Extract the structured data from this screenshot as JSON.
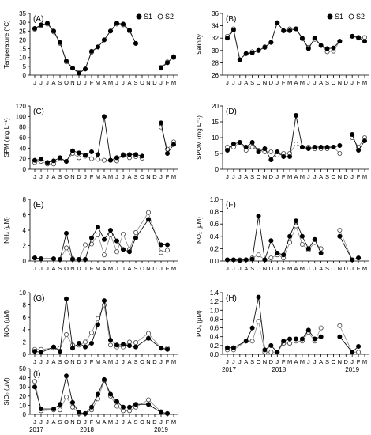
{
  "months": [
    "J",
    "J",
    "J",
    "A",
    "S",
    "O",
    "N",
    "D",
    "J",
    "F",
    "M",
    "A",
    "M",
    "J",
    "J",
    "A",
    "S",
    "O",
    "N",
    "D",
    "J",
    "F",
    "M"
  ],
  "years": [
    "2017",
    "2018",
    "2019"
  ],
  "legend": {
    "s1": "S1",
    "s2": "S2"
  },
  "chart_data": [
    {
      "type": "line",
      "panel": "(A)",
      "ylabel": "Temperature (°C)",
      "ylim": [
        0,
        35
      ],
      "yticks": [
        0,
        5,
        10,
        15,
        20,
        25,
        30,
        35
      ],
      "legend": true,
      "series": [
        {
          "name": "S1",
          "x": [
            0,
            1,
            2,
            3,
            4,
            5,
            6,
            7,
            8,
            9,
            10,
            11,
            12,
            13,
            14,
            15,
            16,
            17,
            18,
            19,
            20,
            21,
            22
          ],
          "values": [
            26.5,
            28.5,
            29.5,
            25.0,
            18.5,
            8.0,
            4.0,
            1.0,
            3.5,
            13.5,
            16.0,
            20.0,
            25.0,
            29.5,
            29.0,
            25.5,
            18.0,
            null,
            null,
            null,
            4.0,
            7.0,
            10.5
          ]
        },
        {
          "name": "S2",
          "x": [
            0,
            1,
            2,
            3,
            4,
            5,
            6,
            7,
            8,
            9,
            10,
            11,
            12,
            13,
            14,
            15,
            16,
            17,
            18,
            19,
            20,
            21,
            22
          ],
          "values": [
            26.0,
            28.0,
            29.0,
            24.5,
            18.0,
            7.5,
            4.0,
            1.5,
            3.5,
            13.0,
            16.0,
            20.0,
            25.0,
            29.0,
            28.5,
            25.0,
            18.0,
            null,
            null,
            null,
            4.5,
            7.5,
            10.0
          ]
        }
      ]
    },
    {
      "type": "line",
      "panel": "(B)",
      "ylabel": "Salinity",
      "ylim": [
        26,
        36
      ],
      "yticks": [
        26,
        28,
        30,
        32,
        34,
        36
      ],
      "legend": true,
      "series": [
        {
          "name": "S1",
          "x": [
            0,
            1,
            2,
            3,
            4,
            5,
            6,
            7,
            8,
            9,
            10,
            11,
            12,
            13,
            14,
            15,
            16,
            17,
            18,
            19,
            20,
            21,
            22
          ],
          "values": [
            32.0,
            33.3,
            28.5,
            29.5,
            29.6,
            30.0,
            30.5,
            31.3,
            34.5,
            33.2,
            33.2,
            33.5,
            32.0,
            30.3,
            32.0,
            30.8,
            30.3,
            30.4,
            31.5,
            null,
            32.3,
            32.1,
            31.5
          ]
        },
        {
          "name": "S2",
          "x": [
            0,
            1,
            2,
            3,
            4,
            5,
            6,
            7,
            8,
            9,
            10,
            11,
            12,
            13,
            14,
            15,
            16,
            17,
            18,
            19,
            20,
            21,
            22
          ],
          "values": [
            32.3,
            33.5,
            28.5,
            29.5,
            29.8,
            30.0,
            30.6,
            31.3,
            34.5,
            33.2,
            33.5,
            33.5,
            31.9,
            30.5,
            31.8,
            30.8,
            29.8,
            29.9,
            31.5,
            null,
            32.3,
            32.0,
            32.1
          ]
        }
      ]
    },
    {
      "type": "line",
      "panel": "(C)",
      "ylabel": "SPM (mg L⁻¹)",
      "ylim": [
        0,
        120
      ],
      "yticks": [
        0,
        20,
        40,
        60,
        80,
        100,
        120
      ],
      "legend": false,
      "series": [
        {
          "name": "S1",
          "x": [
            0,
            1,
            2,
            3,
            4,
            5,
            6,
            7,
            8,
            9,
            10,
            11,
            12,
            13,
            14,
            15,
            16,
            17,
            18,
            19,
            20,
            21,
            22
          ],
          "values": [
            17,
            19,
            13,
            16,
            22,
            15,
            35,
            31,
            27,
            33,
            28,
            100,
            17,
            22,
            26,
            28,
            28,
            25,
            null,
            null,
            88,
            30,
            47
          ]
        },
        {
          "name": "S2",
          "x": [
            0,
            1,
            2,
            3,
            4,
            5,
            6,
            7,
            8,
            9,
            10,
            11,
            12,
            13,
            14,
            15,
            16,
            17,
            18,
            19,
            20,
            21,
            22
          ],
          "values": [
            13,
            15,
            10,
            10,
            20,
            15,
            30,
            22,
            25,
            20,
            19,
            17,
            17,
            16,
            28,
            22,
            24,
            21,
            null,
            null,
            80,
            38,
            52
          ]
        }
      ]
    },
    {
      "type": "line",
      "panel": "(D)",
      "ylabel": "SPOM (mg L⁻¹)",
      "ylim": [
        0,
        20
      ],
      "yticks": [
        0,
        5,
        10,
        15,
        20
      ],
      "legend": false,
      "series": [
        {
          "name": "S1",
          "x": [
            0,
            1,
            2,
            3,
            4,
            5,
            6,
            7,
            8,
            9,
            10,
            11,
            12,
            13,
            14,
            15,
            16,
            17,
            18,
            19,
            20,
            21,
            22
          ],
          "values": [
            6,
            8,
            8.5,
            7,
            8.5,
            5.5,
            6.5,
            3,
            5.5,
            4,
            4,
            17,
            7,
            6.5,
            7,
            7,
            7,
            7,
            7.5,
            null,
            11,
            6,
            9
          ]
        },
        {
          "name": "S2",
          "x": [
            0,
            1,
            2,
            3,
            4,
            5,
            6,
            7,
            8,
            9,
            10,
            11,
            12,
            13,
            14,
            15,
            16,
            17,
            18,
            19,
            20,
            21,
            22
          ],
          "values": [
            7,
            7,
            8.5,
            6,
            7,
            6,
            5.5,
            5.5,
            4.5,
            5,
            5,
            8,
            7,
            7,
            6.5,
            6.5,
            6.5,
            7,
            5,
            null,
            10,
            7,
            10
          ]
        }
      ]
    },
    {
      "type": "line",
      "panel": "(E)",
      "ylabel": "NH₄ (µM)",
      "ylim": [
        0,
        8
      ],
      "yticks": [
        0,
        2,
        4,
        6,
        8
      ],
      "legend": false,
      "series": [
        {
          "name": "S1",
          "x": [
            0,
            1,
            3,
            4,
            5,
            6,
            7,
            8,
            9,
            10,
            11,
            12,
            13,
            14,
            15,
            16,
            18,
            20,
            21,
            22
          ],
          "values": [
            0.4,
            0.3,
            0.3,
            0.2,
            3.6,
            0.2,
            0.2,
            0.2,
            3.0,
            4.4,
            2.8,
            4.0,
            2.6,
            1.5,
            1.2,
            3.0,
            5.4,
            2.1,
            2.1,
            null
          ]
        },
        {
          "name": "S2",
          "x": [
            0,
            1,
            3,
            4,
            5,
            6,
            7,
            8,
            9,
            10,
            11,
            12,
            13,
            14,
            15,
            16,
            18,
            20,
            21,
            22
          ],
          "values": [
            0.4,
            0.3,
            0.3,
            0.2,
            1.7,
            0.3,
            0.2,
            2.1,
            2.2,
            3.4,
            0.8,
            3.4,
            1.2,
            3.5,
            1.5,
            3.7,
            6.3,
            1.1,
            1.4,
            null
          ]
        }
      ]
    },
    {
      "type": "line",
      "panel": "(F)",
      "ylabel": "NO₂ (µM)",
      "ylim": [
        0,
        1.0
      ],
      "yticks": [
        0,
        0.2,
        0.4,
        0.6,
        0.8,
        1.0
      ],
      "legend": false,
      "series": [
        {
          "name": "S1",
          "x": [
            0,
            1,
            2,
            3,
            4,
            5,
            6,
            7,
            8,
            9,
            10,
            11,
            12,
            13,
            14,
            15,
            16,
            18,
            20,
            21
          ],
          "values": [
            0.02,
            0.02,
            0.01,
            0.02,
            0.03,
            0.73,
            0.02,
            0.33,
            0.13,
            0.1,
            0.4,
            0.65,
            0.4,
            0.2,
            0.35,
            0.13,
            null,
            0.4,
            0.02,
            0.05
          ]
        },
        {
          "name": "S2",
          "x": [
            0,
            1,
            2,
            3,
            4,
            5,
            6,
            7,
            8,
            9,
            10,
            11,
            12,
            13,
            14,
            15,
            16,
            18,
            20,
            21
          ],
          "values": [
            0.02,
            0.02,
            0.02,
            0.02,
            0.05,
            0.1,
            0.02,
            0.05,
            0.1,
            0.05,
            0.3,
            0.57,
            0.27,
            0.18,
            0.3,
            0.2,
            null,
            0.5,
            0.02,
            0.05
          ]
        }
      ]
    },
    {
      "type": "line",
      "panel": "(G)",
      "ylabel": "NO₃ (µM)",
      "ylim": [
        0,
        10
      ],
      "yticks": [
        0,
        2,
        4,
        6,
        8,
        10
      ],
      "legend": false,
      "series": [
        {
          "name": "S1",
          "x": [
            0,
            1,
            3,
            4,
            5,
            6,
            7,
            8,
            9,
            10,
            11,
            12,
            13,
            14,
            15,
            16,
            18,
            20,
            21
          ],
          "values": [
            0.5,
            0.3,
            1.2,
            0.5,
            9.0,
            1.0,
            1.8,
            1.2,
            1.8,
            4.8,
            8.7,
            2.3,
            1.5,
            1.6,
            1.4,
            1.2,
            2.6,
            1.0,
            0.8
          ]
        },
        {
          "name": "S2",
          "x": [
            0,
            1,
            3,
            4,
            5,
            6,
            7,
            8,
            9,
            10,
            11,
            12,
            13,
            14,
            15,
            16,
            18,
            20,
            21
          ],
          "values": [
            0.8,
            0.8,
            1.0,
            1.0,
            3.2,
            1.5,
            1.5,
            2.0,
            3.5,
            5.8,
            8.0,
            1.5,
            1.2,
            1.2,
            2.0,
            1.9,
            3.4,
            1.0,
            1.0
          ]
        }
      ]
    },
    {
      "type": "line",
      "panel": "(H)",
      "ylabel": "PO₄ (µM)",
      "ylim": [
        0,
        1.4
      ],
      "yticks": [
        0,
        0.2,
        0.4,
        0.6,
        0.8,
        1.0,
        1.2,
        1.4
      ],
      "legend": false,
      "series": [
        {
          "name": "S1",
          "x": [
            0,
            1,
            3,
            4,
            5,
            6,
            7,
            8,
            9,
            10,
            11,
            12,
            13,
            14,
            15,
            16,
            18,
            20,
            21
          ],
          "values": [
            0.15,
            0.15,
            0.3,
            0.6,
            1.3,
            0.1,
            0.2,
            0.05,
            0.3,
            0.35,
            0.35,
            0.35,
            0.55,
            0.35,
            0.4,
            null,
            0.4,
            0.05,
            0.18
          ]
        },
        {
          "name": "S2",
          "x": [
            0,
            1,
            3,
            4,
            5,
            6,
            7,
            8,
            9,
            10,
            11,
            12,
            13,
            14,
            15,
            16,
            18,
            20,
            21
          ],
          "values": [
            0.1,
            0.1,
            0.3,
            0.3,
            0.75,
            0.05,
            0.05,
            0.05,
            0.25,
            0.25,
            0.3,
            0.3,
            0.5,
            0.3,
            0.6,
            null,
            0.65,
            0.05,
            0.05
          ]
        }
      ]
    },
    {
      "type": "line",
      "panel": "(I)",
      "ylabel": "SiO₂ (µM)",
      "ylim": [
        0,
        50
      ],
      "yticks": [
        0,
        10,
        20,
        30,
        40,
        50
      ],
      "legend": false,
      "series": [
        {
          "name": "S1",
          "x": [
            0,
            1,
            3,
            4,
            5,
            6,
            7,
            8,
            9,
            10,
            11,
            12,
            13,
            14,
            15,
            16,
            18,
            20,
            21
          ],
          "values": [
            30,
            6,
            6,
            11,
            42,
            13,
            2,
            1,
            8,
            22,
            38,
            22,
            14,
            8,
            8,
            11,
            11,
            2,
            1
          ]
        },
        {
          "name": "S2",
          "x": [
            0,
            1,
            3,
            4,
            5,
            6,
            7,
            8,
            9,
            10,
            11,
            12,
            13,
            14,
            15,
            16,
            18,
            20,
            21
          ],
          "values": [
            36,
            4,
            5,
            5,
            19,
            8,
            1,
            1,
            5,
            17,
            37,
            20,
            9,
            4,
            4,
            8,
            16,
            3,
            1
          ]
        }
      ]
    }
  ]
}
